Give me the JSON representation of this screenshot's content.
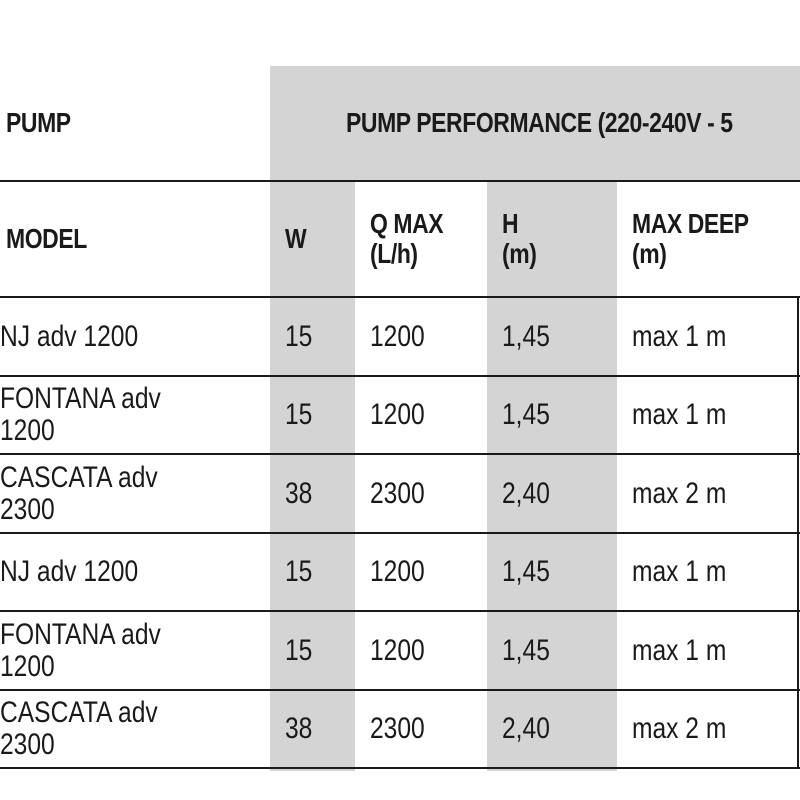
{
  "table": {
    "group_headers": {
      "pump": "PUMP",
      "performance": "PUMP PERFORMANCE (220-240V - 5"
    },
    "columns": [
      {
        "key": "model",
        "label": "MODEL"
      },
      {
        "key": "w",
        "label": "W"
      },
      {
        "key": "q_max",
        "label": "Q MAX\n(L/h)"
      },
      {
        "key": "h",
        "label": "H\n(m)"
      },
      {
        "key": "max_deep",
        "label": "MAX DEEP\n(m)"
      }
    ],
    "rows": [
      {
        "model": "NJ adv 1200",
        "w": "15",
        "q_max": "1200",
        "h": "1,45",
        "max_deep": "max 1 m"
      },
      {
        "model": "FONTANA adv 1200",
        "w": "15",
        "q_max": "1200",
        "h": "1,45",
        "max_deep": "max 1 m"
      },
      {
        "model": "CASCATA adv 2300",
        "w": "38",
        "q_max": "2300",
        "h": "2,40",
        "max_deep": "max 2 m"
      },
      {
        "model": "NJ adv 1200",
        "w": "15",
        "q_max": "1200",
        "h": "1,45",
        "max_deep": "max 1 m"
      },
      {
        "model": "FONTANA adv 1200",
        "w": "15",
        "q_max": "1200",
        "h": "1,45",
        "max_deep": "max 1 m"
      },
      {
        "model": "CASCATA adv 2300",
        "w": "38",
        "q_max": "2300",
        "h": "2,40",
        "max_deep": "max 2 m"
      }
    ]
  },
  "colors": {
    "shade": "#d4d4d4",
    "rule": "#1a1a1a",
    "text": "#1a1a1a"
  }
}
